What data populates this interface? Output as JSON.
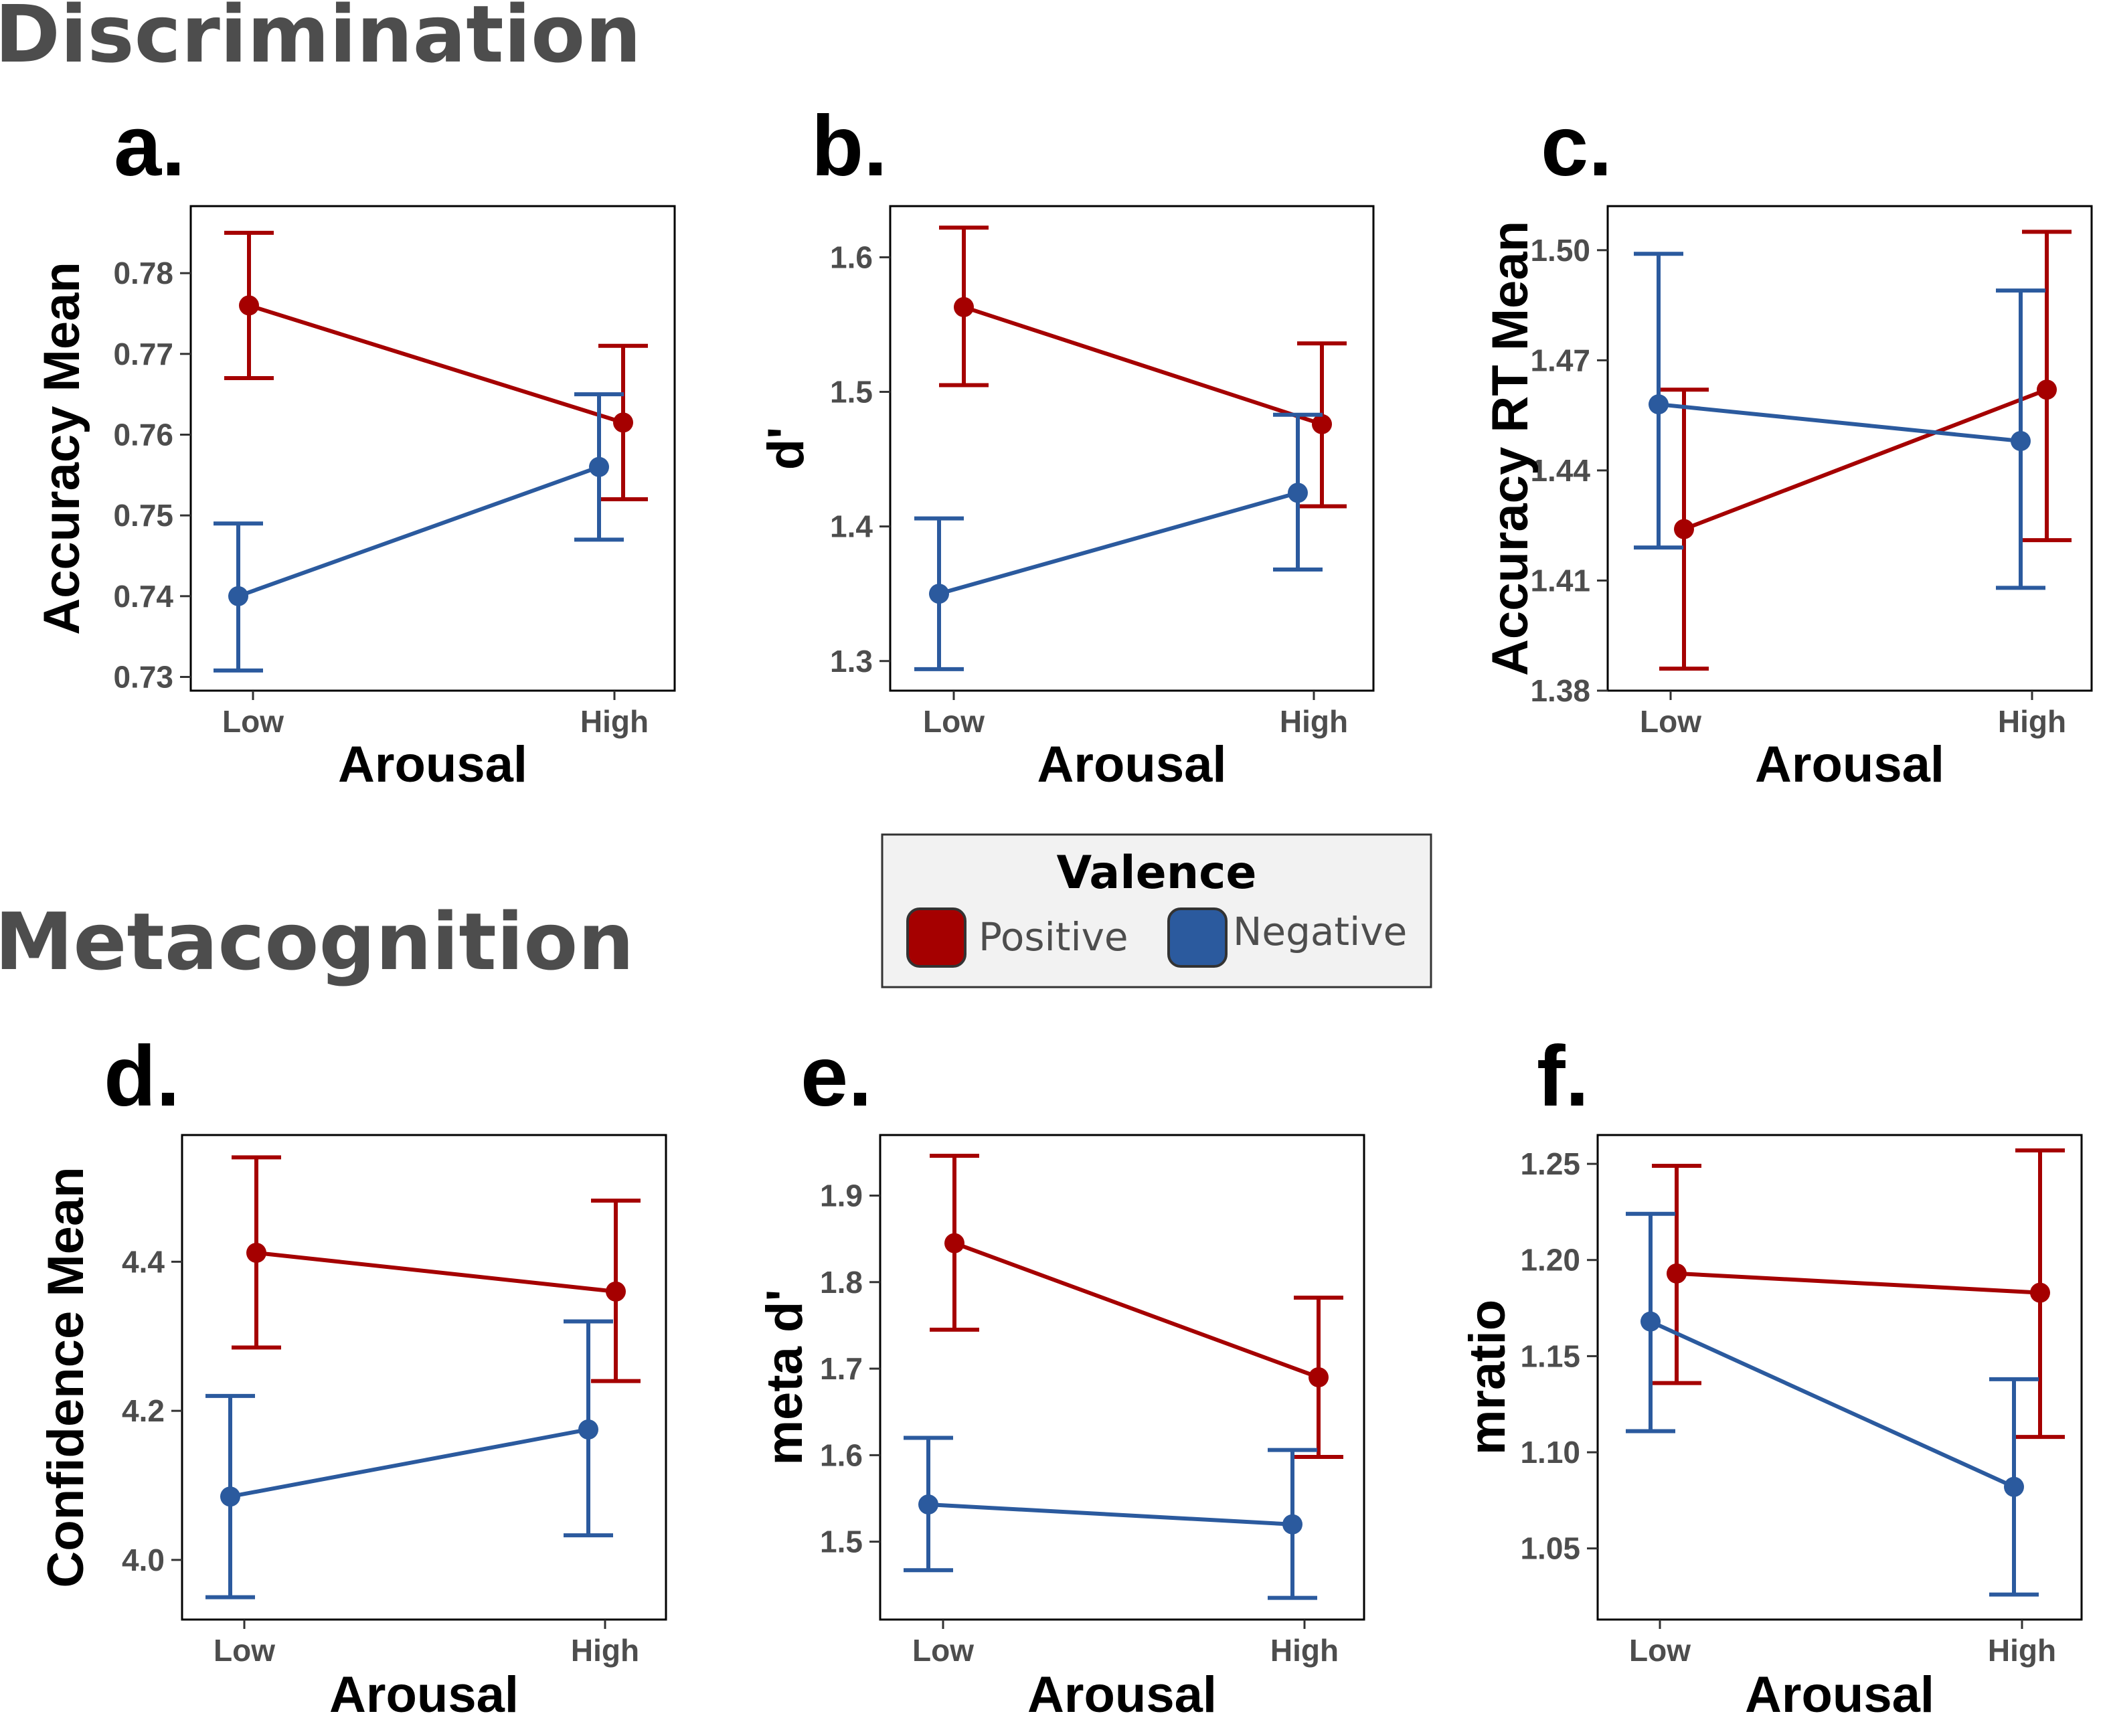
{
  "section_titles": {
    "top": "Discrimination",
    "bottom": "Metacognition"
  },
  "legend": {
    "title": "Valence",
    "items": [
      {
        "label": "Positive",
        "color": "#a50000"
      },
      {
        "label": "Negative",
        "color": "#2b5a9e"
      }
    ]
  },
  "chart_data": [
    {
      "panel": "a.",
      "type": "line",
      "xlabel": "Arousal",
      "ylabel": "Accuracy Mean",
      "categories": [
        "Low",
        "High"
      ],
      "ylim": [
        0.7283,
        0.7883
      ],
      "yticks": [
        0.73,
        0.74,
        0.75,
        0.76,
        0.77,
        0.78
      ],
      "series": [
        {
          "name": "Positive",
          "values": [
            0.776,
            0.7615
          ],
          "ci_low": [
            0.767,
            0.752
          ],
          "ci_high": [
            0.785,
            0.771
          ]
        },
        {
          "name": "Negative",
          "values": [
            0.74,
            0.756
          ],
          "ci_low": [
            0.7308,
            0.747
          ],
          "ci_high": [
            0.749,
            0.765
          ]
        }
      ]
    },
    {
      "panel": "b.",
      "type": "line",
      "xlabel": "Arousal",
      "ylabel": "d'",
      "categories": [
        "Low",
        "High"
      ],
      "ylim": [
        1.278,
        1.638
      ],
      "yticks": [
        1.3,
        1.4,
        1.5,
        1.6
      ],
      "series": [
        {
          "name": "Positive",
          "values": [
            1.563,
            1.476
          ],
          "ci_low": [
            1.505,
            1.415
          ],
          "ci_high": [
            1.622,
            1.536
          ]
        },
        {
          "name": "Negative",
          "values": [
            1.35,
            1.425
          ],
          "ci_low": [
            1.294,
            1.368
          ],
          "ci_high": [
            1.406,
            1.483
          ]
        }
      ]
    },
    {
      "panel": "c.",
      "type": "line",
      "xlabel": "Arousal",
      "ylabel": "Accuracy RT Mean",
      "categories": [
        "Low",
        "High"
      ],
      "ylim": [
        1.38,
        1.512
      ],
      "yticks": [
        1.38,
        1.41,
        1.44,
        1.47,
        1.5
      ],
      "tick_labels": [
        "1.38",
        "1.41",
        "1.44",
        "1.47",
        "1.50"
      ],
      "series": [
        {
          "name": "Positive",
          "values": [
            1.424,
            1.462
          ],
          "ci_low": [
            1.386,
            1.421
          ],
          "ci_high": [
            1.462,
            1.505
          ]
        },
        {
          "name": "Negative",
          "values": [
            1.458,
            1.448
          ],
          "ci_low": [
            1.419,
            1.408
          ],
          "ci_high": [
            1.499,
            1.489
          ]
        }
      ]
    },
    {
      "panel": "d.",
      "type": "line",
      "xlabel": "Arousal",
      "ylabel": "Confidence Mean",
      "categories": [
        "Low",
        "High"
      ],
      "ylim": [
        3.92,
        4.57
      ],
      "yticks": [
        4.0,
        4.2,
        4.4
      ],
      "tick_labels": [
        "4.0",
        "4.2",
        "4.4"
      ],
      "series": [
        {
          "name": "Positive",
          "values": [
            4.412,
            4.36
          ],
          "ci_low": [
            4.285,
            4.24
          ],
          "ci_high": [
            4.54,
            4.482
          ]
        },
        {
          "name": "Negative",
          "values": [
            4.085,
            4.175
          ],
          "ci_low": [
            3.95,
            4.033
          ],
          "ci_high": [
            4.22,
            4.32
          ]
        }
      ]
    },
    {
      "panel": "e.",
      "type": "line",
      "xlabel": "Arousal",
      "ylabel": "meta d'",
      "categories": [
        "Low",
        "High"
      ],
      "ylim": [
        1.41,
        1.97
      ],
      "yticks": [
        1.5,
        1.6,
        1.7,
        1.8,
        1.9
      ],
      "series": [
        {
          "name": "Positive",
          "values": [
            1.845,
            1.69
          ],
          "ci_low": [
            1.745,
            1.598
          ],
          "ci_high": [
            1.946,
            1.782
          ]
        },
        {
          "name": "Negative",
          "values": [
            1.543,
            1.52
          ],
          "ci_low": [
            1.467,
            1.435
          ],
          "ci_high": [
            1.62,
            1.606
          ]
        }
      ]
    },
    {
      "panel": "f.",
      "type": "line",
      "xlabel": "Arousal",
      "ylabel": "mratio",
      "categories": [
        "Low",
        "High"
      ],
      "ylim": [
        1.013,
        1.265
      ],
      "yticks": [
        1.05,
        1.1,
        1.15,
        1.2,
        1.25
      ],
      "tick_labels": [
        "1.05",
        "1.10",
        "1.15",
        "1.20",
        "1.25"
      ],
      "series": [
        {
          "name": "Positive",
          "values": [
            1.193,
            1.183
          ],
          "ci_low": [
            1.136,
            1.108
          ],
          "ci_high": [
            1.249,
            1.257
          ]
        },
        {
          "name": "Negative",
          "values": [
            1.168,
            1.082
          ],
          "ci_low": [
            1.111,
            1.026
          ],
          "ci_high": [
            1.224,
            1.138
          ]
        }
      ]
    }
  ]
}
